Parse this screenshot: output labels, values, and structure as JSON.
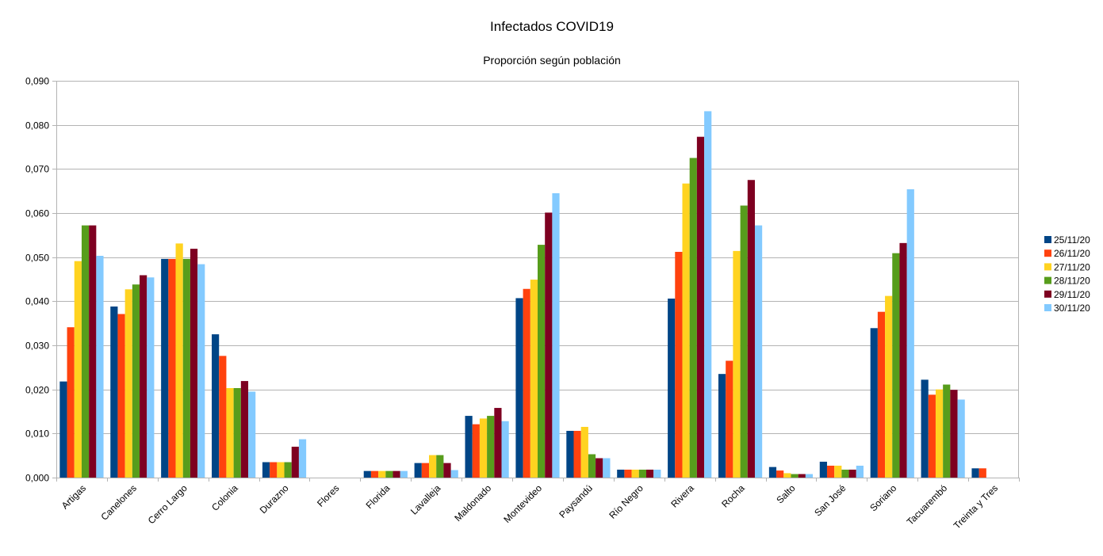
{
  "chart_data": {
    "type": "bar",
    "title": "Infectados COVID19",
    "subtitle": "Proporción según población",
    "xlabel": "",
    "ylabel": "",
    "ylim": [
      0,
      0.09
    ],
    "ytick_step": 0.01,
    "ytick_labels": [
      "0,000",
      "0,010",
      "0,020",
      "0,030",
      "0,040",
      "0,050",
      "0,060",
      "0,070",
      "0,080",
      "0,090"
    ],
    "grid": true,
    "legend_position": "right",
    "categories": [
      "Artigas",
      "Canelones",
      "Cerro Largo",
      "Colonia",
      "Durazno",
      "Flores",
      "Florida",
      "Lavalleja",
      "Maldonado",
      "Montevideo",
      "Paysandú",
      "Río Negro",
      "Rivera",
      "Rocha",
      "Salto",
      "San José",
      "Soriano",
      "Tacuarembó",
      "Treinta y Tres"
    ],
    "series": [
      {
        "name": "25/11/20",
        "color": "#004586",
        "values": [
          0.0218,
          0.0388,
          0.0496,
          0.0325,
          0.0035,
          0.0,
          0.0015,
          0.0033,
          0.014,
          0.0407,
          0.0106,
          0.0018,
          0.0406,
          0.0235,
          0.0024,
          0.0036,
          0.0339,
          0.0222,
          0.0021
        ]
      },
      {
        "name": "26/11/20",
        "color": "#ff420e",
        "values": [
          0.0341,
          0.0371,
          0.0496,
          0.0276,
          0.0035,
          0.0,
          0.0015,
          0.0033,
          0.0121,
          0.0428,
          0.0106,
          0.0018,
          0.0512,
          0.0265,
          0.0016,
          0.0027,
          0.0376,
          0.0188,
          0.0021
        ]
      },
      {
        "name": "27/11/20",
        "color": "#ffd320",
        "values": [
          0.0491,
          0.0427,
          0.0531,
          0.0203,
          0.0035,
          0.0,
          0.0015,
          0.0051,
          0.0134,
          0.0449,
          0.0115,
          0.0018,
          0.0667,
          0.0514,
          0.001,
          0.0027,
          0.0412,
          0.02,
          null
        ]
      },
      {
        "name": "28/11/20",
        "color": "#579d1c",
        "values": [
          0.0572,
          0.0438,
          0.0496,
          0.0203,
          0.0035,
          0.0,
          0.0015,
          0.0051,
          0.014,
          0.0528,
          0.0053,
          0.0018,
          0.0725,
          0.0617,
          0.0008,
          0.0018,
          0.0509,
          0.0211,
          null
        ]
      },
      {
        "name": "29/11/20",
        "color": "#7e0021",
        "values": [
          0.0572,
          0.0459,
          0.0519,
          0.0219,
          0.007,
          0.0,
          0.0015,
          0.0033,
          0.0158,
          0.0601,
          0.0044,
          0.0018,
          0.0773,
          0.0675,
          0.0008,
          0.0018,
          0.0532,
          0.0199,
          null
        ]
      },
      {
        "name": "30/11/20",
        "color": "#83caff",
        "values": [
          0.0503,
          0.0454,
          0.0484,
          0.0195,
          0.0087,
          0.0,
          0.0015,
          0.0017,
          0.0128,
          0.0645,
          0.0044,
          0.0018,
          0.0831,
          0.0572,
          0.0008,
          0.0027,
          0.0654,
          0.0177,
          null
        ]
      }
    ]
  }
}
